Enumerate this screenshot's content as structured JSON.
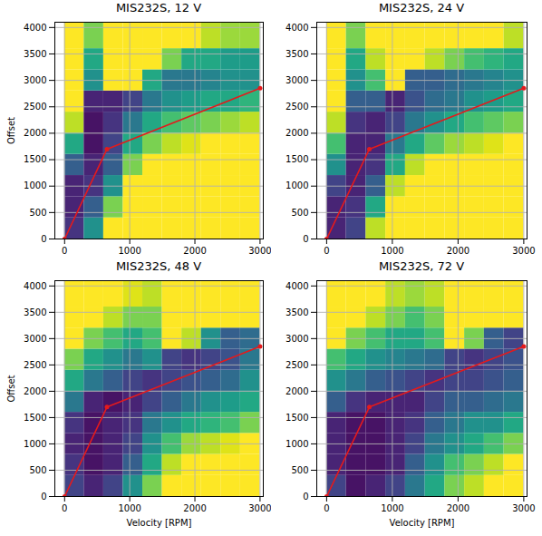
{
  "chart_data": [
    {
      "type": "heatmap",
      "title": "MIS232S, 12 V",
      "ylabel": "Offset",
      "xlim": [
        -150,
        3050
      ],
      "ylim": [
        0,
        4100
      ],
      "xticks": [
        0,
        1000,
        2000,
        3000
      ],
      "yticks": [
        0,
        500,
        1000,
        1500,
        2000,
        2500,
        3000,
        3500,
        4000
      ],
      "grid": true,
      "x_bins": [
        0,
        300,
        600,
        900,
        1200,
        1500,
        1800,
        2100,
        2400,
        2700,
        3000
      ],
      "y_bins": [
        0,
        400,
        800,
        1200,
        1600,
        2000,
        2400,
        2800,
        3200,
        3600,
        4100
      ],
      "zlim": [
        0,
        1
      ],
      "cells": [
        [
          0.15,
          0.5,
          1,
          1,
          1,
          1,
          1,
          1,
          1,
          1
        ],
        [
          0.1,
          0.3,
          0.8,
          1,
          1,
          1,
          1,
          1,
          1,
          1
        ],
        [
          0.1,
          0.15,
          0.5,
          1,
          1,
          1,
          1,
          1,
          1,
          1
        ],
        [
          0.3,
          0.1,
          0.3,
          0.8,
          1,
          1,
          1,
          1,
          1,
          1
        ],
        [
          0.6,
          0.05,
          0.2,
          0.6,
          0.8,
          0.9,
          0.95,
          1,
          1,
          1
        ],
        [
          0.9,
          0.05,
          0.15,
          0.4,
          0.6,
          0.7,
          0.75,
          0.8,
          0.85,
          0.9
        ],
        [
          1,
          0.1,
          0.1,
          0.2,
          0.4,
          0.5,
          0.55,
          0.6,
          0.6,
          0.65
        ],
        [
          1,
          0.5,
          1,
          1,
          0.6,
          0.4,
          0.4,
          0.45,
          0.5,
          0.5
        ],
        [
          1,
          0.6,
          1,
          1,
          1,
          0.8,
          0.6,
          0.6,
          0.55,
          0.55
        ],
        [
          1,
          0.8,
          1,
          1,
          1,
          1,
          1,
          0.9,
          0.85,
          0.85
        ]
      ],
      "line": {
        "x": [
          0,
          650,
          3000
        ],
        "y": [
          0,
          1700,
          2850
        ],
        "color": "#e41a1c",
        "marker": "circle"
      }
    },
    {
      "type": "heatmap",
      "title": "MIS232S, 24 V",
      "xlim": [
        -150,
        3050
      ],
      "ylim": [
        0,
        4100
      ],
      "xticks": [
        0,
        1000,
        2000,
        3000
      ],
      "yticks": [
        0,
        500,
        1000,
        1500,
        2000,
        2500,
        3000,
        3500,
        4000
      ],
      "grid": true,
      "x_bins": [
        0,
        300,
        600,
        900,
        1200,
        1500,
        1800,
        2100,
        2400,
        2700,
        3000
      ],
      "y_bins": [
        0,
        400,
        800,
        1200,
        1600,
        2000,
        2400,
        2800,
        3200,
        3600,
        4100
      ],
      "zlim": [
        0,
        1
      ],
      "cells": [
        [
          0.1,
          0.2,
          0.9,
          1,
          1,
          1,
          1,
          1,
          1,
          1
        ],
        [
          0.1,
          0.15,
          0.6,
          1,
          1,
          1,
          1,
          1,
          1,
          1
        ],
        [
          0.2,
          0.1,
          0.3,
          0.9,
          1,
          1,
          1,
          1,
          1,
          1
        ],
        [
          0.5,
          0.1,
          0.15,
          0.6,
          0.9,
          1,
          1,
          1,
          1,
          1
        ],
        [
          0.7,
          0.1,
          0.1,
          0.4,
          0.6,
          0.75,
          0.85,
          0.9,
          0.95,
          1
        ],
        [
          0.9,
          0.15,
          0.1,
          0.2,
          0.4,
          0.5,
          0.6,
          0.7,
          0.75,
          0.8
        ],
        [
          1,
          0.3,
          0.3,
          0.1,
          0.25,
          0.35,
          0.4,
          0.5,
          0.55,
          0.6
        ],
        [
          1,
          0.5,
          0.7,
          1,
          0.3,
          0.3,
          0.35,
          0.4,
          0.45,
          0.5
        ],
        [
          1,
          0.6,
          0.9,
          1,
          1,
          0.9,
          0.8,
          0.7,
          0.65,
          0.6
        ],
        [
          1,
          0.8,
          1,
          1,
          1,
          1,
          1,
          1,
          1,
          0.9
        ]
      ],
      "line": {
        "x": [
          0,
          650,
          3000
        ],
        "y": [
          0,
          1700,
          2850
        ],
        "color": "#e41a1c",
        "marker": "circle"
      }
    },
    {
      "type": "heatmap",
      "title": "MIS232S, 48 V",
      "xlabel": "Velocity [RPM]",
      "ylabel": "Offset",
      "xlim": [
        -150,
        3050
      ],
      "ylim": [
        0,
        4100
      ],
      "xticks": [
        0,
        1000,
        2000,
        3000
      ],
      "yticks": [
        0,
        500,
        1000,
        1500,
        2000,
        2500,
        3000,
        3500,
        4000
      ],
      "grid": true,
      "x_bins": [
        0,
        300,
        600,
        900,
        1200,
        1500,
        1800,
        2100,
        2400,
        2700,
        3000
      ],
      "y_bins": [
        0,
        400,
        800,
        1200,
        1600,
        2000,
        2400,
        2800,
        3200,
        3600,
        4100
      ],
      "zlim": [
        0,
        1
      ],
      "cells": [
        [
          0.2,
          0.1,
          0.2,
          0.5,
          0.8,
          1,
          1,
          1,
          1,
          1
        ],
        [
          0.15,
          0.05,
          0.1,
          0.3,
          0.6,
          0.9,
          1,
          1,
          1,
          1
        ],
        [
          0.1,
          0.05,
          0.1,
          0.2,
          0.5,
          0.7,
          0.85,
          0.9,
          0.95,
          1
        ],
        [
          0.15,
          0.05,
          0.1,
          0.15,
          0.4,
          0.5,
          0.6,
          0.65,
          0.7,
          0.8
        ],
        [
          0.4,
          0.1,
          0.05,
          0.1,
          0.2,
          0.3,
          0.4,
          0.5,
          0.55,
          0.6
        ],
        [
          0.6,
          0.4,
          0.3,
          0.2,
          0.15,
          0.2,
          0.25,
          0.3,
          0.35,
          0.5
        ],
        [
          0.8,
          0.6,
          0.5,
          0.4,
          0.5,
          0.2,
          0.15,
          0.2,
          0.25,
          0.4
        ],
        [
          1,
          0.8,
          0.7,
          0.6,
          0.7,
          1,
          0.9,
          0.5,
          0.3,
          0.35
        ],
        [
          1,
          1,
          0.9,
          0.8,
          0.8,
          1,
          1,
          1,
          1,
          1
        ],
        [
          1,
          1,
          1,
          0.95,
          0.9,
          1,
          1,
          1,
          1,
          1
        ]
      ],
      "line": {
        "x": [
          0,
          650,
          3000
        ],
        "y": [
          0,
          1700,
          2850
        ],
        "color": "#e41a1c",
        "marker": "circle"
      }
    },
    {
      "type": "heatmap",
      "title": "MIS232S, 72 V",
      "xlabel": "Velocity [RPM]",
      "xlim": [
        -150,
        3050
      ],
      "ylim": [
        0,
        4100
      ],
      "xticks": [
        0,
        1000,
        2000,
        3000
      ],
      "yticks": [
        0,
        500,
        1000,
        1500,
        2000,
        2500,
        3000,
        3500,
        4000
      ],
      "grid": true,
      "x_bins": [
        0,
        300,
        600,
        900,
        1200,
        1500,
        1800,
        2100,
        2400,
        2700,
        3000
      ],
      "y_bins": [
        0,
        400,
        800,
        1200,
        1600,
        2000,
        2400,
        2800,
        3200,
        3600,
        4100
      ],
      "zlim": [
        0,
        1
      ],
      "cells": [
        [
          0.2,
          0.05,
          0.1,
          0.2,
          0.4,
          0.6,
          0.8,
          0.9,
          1,
          1
        ],
        [
          0.1,
          0.05,
          0.05,
          0.1,
          0.3,
          0.5,
          0.7,
          0.8,
          0.9,
          1
        ],
        [
          0.1,
          0.05,
          0.05,
          0.1,
          0.2,
          0.4,
          0.5,
          0.6,
          0.7,
          0.8
        ],
        [
          0.1,
          0.05,
          0.05,
          0.1,
          0.15,
          0.3,
          0.4,
          0.5,
          0.5,
          0.6
        ],
        [
          0.3,
          0.15,
          0.1,
          0.1,
          0.1,
          0.2,
          0.3,
          0.3,
          0.35,
          0.4
        ],
        [
          0.5,
          0.4,
          0.3,
          0.25,
          0.2,
          0.15,
          0.2,
          0.2,
          0.25,
          0.3
        ],
        [
          0.7,
          0.6,
          0.5,
          0.45,
          0.4,
          0.35,
          0.2,
          0.15,
          0.2,
          0.25
        ],
        [
          1,
          0.8,
          0.7,
          0.6,
          0.6,
          0.7,
          1,
          0.8,
          0.3,
          0.2
        ],
        [
          1,
          1,
          0.9,
          0.8,
          0.7,
          0.8,
          1,
          1,
          1,
          1
        ],
        [
          1,
          1,
          1,
          0.9,
          0.85,
          0.9,
          1,
          1,
          1,
          1
        ]
      ],
      "line": {
        "x": [
          0,
          650,
          3000
        ],
        "y": [
          0,
          1700,
          2850
        ],
        "color": "#e41a1c",
        "marker": "circle"
      }
    }
  ]
}
